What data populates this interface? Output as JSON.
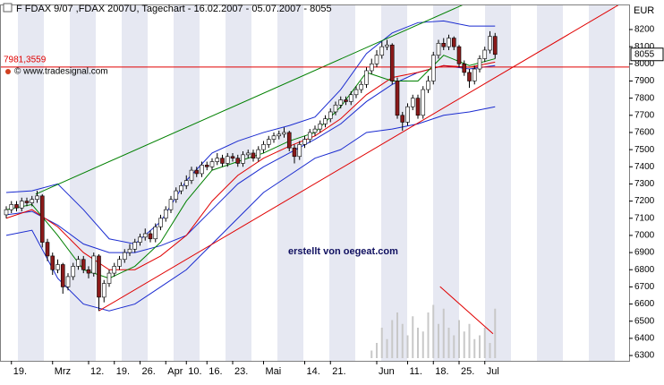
{
  "chart_data": {
    "type": "candlestick",
    "title": "F FDAX 9/07 ,FDAX 2007U, Tagechart - 16.02.2007 - 05.07.2007 - 8055",
    "source": "© www.tradesignal.com",
    "annotation": "erstellt von oegeat.com",
    "y_axis_label": "EUR",
    "last_price": 8055,
    "ylim": [
      6269,
      8346
    ],
    "yticks": [
      8200,
      8100,
      8000,
      7900,
      7800,
      7700,
      7600,
      7500,
      7400,
      7300,
      7200,
      7100,
      7000,
      6900,
      6800,
      6700,
      6600,
      6500,
      6400,
      6300
    ],
    "categories": [
      null,
      "19.",
      null,
      null,
      null,
      null,
      null,
      null,
      null,
      "Mrz",
      null,
      null,
      null,
      null,
      null,
      null,
      "12.",
      null,
      null,
      null,
      null,
      "19.",
      null,
      null,
      null,
      null,
      "26.",
      null,
      null,
      null,
      null,
      "Apr",
      null,
      null,
      null,
      "10.",
      null,
      null,
      null,
      "16.",
      null,
      null,
      null,
      null,
      "23.",
      null,
      null,
      null,
      null,
      null,
      "Mai",
      null,
      null,
      null,
      null,
      null,
      null,
      null,
      "14.",
      null,
      null,
      null,
      null,
      "21.",
      null,
      null,
      null,
      null,
      null,
      null,
      null,
      null,
      "Jun",
      null,
      null,
      null,
      null,
      null,
      "11.",
      null,
      null,
      null,
      null,
      "18.",
      null,
      null,
      null,
      null,
      "25.",
      null,
      null,
      null,
      null,
      "Jul",
      null,
      null
    ],
    "up_color": "#ffffff",
    "down_color": "#8b1a1a",
    "candles": [
      [
        7120,
        7170,
        7100,
        7150
      ],
      [
        7150,
        7200,
        7130,
        7180
      ],
      [
        7180,
        7200,
        7140,
        7160
      ],
      [
        7160,
        7220,
        7140,
        7200
      ],
      [
        7200,
        7220,
        7170,
        7190
      ],
      [
        7190,
        7230,
        7170,
        7210
      ],
      [
        7210,
        7260,
        7190,
        7230
      ],
      [
        7230,
        7240,
        6930,
        6960
      ],
      [
        6960,
        6980,
        6850,
        6880
      ],
      [
        6880,
        6900,
        6770,
        6800
      ],
      [
        6800,
        6860,
        6780,
        6830
      ],
      [
        6830,
        6840,
        6660,
        6700
      ],
      [
        6700,
        6780,
        6680,
        6760
      ],
      [
        6760,
        6840,
        6740,
        6820
      ],
      [
        6820,
        6880,
        6800,
        6860
      ],
      [
        6860,
        6880,
        6780,
        6800
      ],
      [
        6800,
        6820,
        6750,
        6780
      ],
      [
        6780,
        6900,
        6760,
        6880
      ],
      [
        6880,
        6890,
        6560,
        6640
      ],
      [
        6640,
        6740,
        6610,
        6720
      ],
      [
        6720,
        6800,
        6700,
        6780
      ],
      [
        6780,
        6840,
        6760,
        6820
      ],
      [
        6820,
        6880,
        6800,
        6860
      ],
      [
        6860,
        6920,
        6840,
        6900
      ],
      [
        6900,
        6950,
        6880,
        6920
      ],
      [
        6920,
        6980,
        6900,
        6960
      ],
      [
        6960,
        7010,
        6940,
        6990
      ],
      [
        6990,
        7040,
        6970,
        7010
      ],
      [
        7010,
        7030,
        6960,
        6980
      ],
      [
        6980,
        7070,
        6960,
        7050
      ],
      [
        7050,
        7120,
        7030,
        7100
      ],
      [
        7100,
        7170,
        7080,
        7150
      ],
      [
        7150,
        7230,
        7130,
        7210
      ],
      [
        7210,
        7280,
        7190,
        7260
      ],
      [
        7260,
        7310,
        7240,
        7290
      ],
      [
        7290,
        7350,
        7270,
        7320
      ],
      [
        7320,
        7400,
        7300,
        7380
      ],
      [
        7380,
        7400,
        7340,
        7360
      ],
      [
        7360,
        7430,
        7340,
        7410
      ],
      [
        7410,
        7430,
        7380,
        7400
      ],
      [
        7400,
        7450,
        7380,
        7430
      ],
      [
        7430,
        7480,
        7410,
        7450
      ],
      [
        7450,
        7470,
        7400,
        7420
      ],
      [
        7420,
        7480,
        7400,
        7460
      ],
      [
        7460,
        7480,
        7430,
        7450
      ],
      [
        7450,
        7470,
        7400,
        7420
      ],
      [
        7420,
        7490,
        7400,
        7470
      ],
      [
        7470,
        7500,
        7450,
        7480
      ],
      [
        7480,
        7500,
        7430,
        7450
      ],
      [
        7450,
        7520,
        7430,
        7500
      ],
      [
        7500,
        7550,
        7480,
        7530
      ],
      [
        7530,
        7580,
        7510,
        7560
      ],
      [
        7560,
        7600,
        7540,
        7580
      ],
      [
        7580,
        7610,
        7560,
        7590
      ],
      [
        7590,
        7630,
        7570,
        7600
      ],
      [
        7600,
        7610,
        7490,
        7510
      ],
      [
        7510,
        7530,
        7420,
        7460
      ],
      [
        7460,
        7550,
        7440,
        7530
      ],
      [
        7530,
        7580,
        7510,
        7560
      ],
      [
        7560,
        7620,
        7540,
        7600
      ],
      [
        7600,
        7640,
        7580,
        7620
      ],
      [
        7620,
        7670,
        7600,
        7650
      ],
      [
        7650,
        7700,
        7630,
        7680
      ],
      [
        7680,
        7740,
        7660,
        7720
      ],
      [
        7720,
        7780,
        7700,
        7760
      ],
      [
        7760,
        7810,
        7740,
        7790
      ],
      [
        7790,
        7810,
        7760,
        7780
      ],
      [
        7780,
        7840,
        7760,
        7820
      ],
      [
        7820,
        7870,
        7800,
        7850
      ],
      [
        7850,
        7900,
        7830,
        7880
      ],
      [
        7880,
        7980,
        7860,
        7960
      ],
      [
        7960,
        8030,
        7940,
        8000
      ],
      [
        8000,
        8080,
        7980,
        8050
      ],
      [
        8050,
        8130,
        8030,
        8100
      ],
      [
        8100,
        8140,
        8080,
        8110
      ],
      [
        8110,
        8120,
        7880,
        7900
      ],
      [
        7900,
        7920,
        7680,
        7700
      ],
      [
        7700,
        7720,
        7610,
        7660
      ],
      [
        7660,
        7770,
        7640,
        7750
      ],
      [
        7750,
        7820,
        7730,
        7800
      ],
      [
        7800,
        7820,
        7680,
        7700
      ],
      [
        7700,
        7870,
        7680,
        7850
      ],
      [
        7850,
        7930,
        7830,
        7900
      ],
      [
        7900,
        8070,
        7880,
        8050
      ],
      [
        8050,
        8140,
        8030,
        8120
      ],
      [
        8120,
        8150,
        8080,
        8100
      ],
      [
        8100,
        8170,
        8080,
        8150
      ],
      [
        8150,
        8160,
        8080,
        8100
      ],
      [
        8100,
        8110,
        7980,
        8000
      ],
      [
        8000,
        8020,
        7930,
        7950
      ],
      [
        7950,
        7970,
        7860,
        7900
      ],
      [
        7900,
        7990,
        7880,
        7970
      ],
      [
        7970,
        8050,
        7950,
        8030
      ],
      [
        8030,
        8100,
        8010,
        8080
      ],
      [
        8080,
        8190,
        8060,
        8160
      ],
      [
        8160,
        8180,
        8030,
        8055
      ]
    ],
    "overlays": [
      {
        "color": "#1a2bd0",
        "x": [
          0,
          5,
          10,
          15,
          20,
          25,
          30,
          35,
          40,
          45,
          50,
          55,
          60,
          65,
          70,
          75,
          80,
          85,
          90,
          95
        ],
        "values": [
          7250,
          7260,
          7300,
          7150,
          6980,
          6950,
          7080,
          7320,
          7480,
          7550,
          7600,
          7640,
          7690,
          7850,
          8060,
          8180,
          8240,
          8250,
          8220,
          8220
        ]
      },
      {
        "color": "#1a2bd0",
        "x": [
          0,
          5,
          10,
          15,
          20,
          25,
          30,
          35,
          40,
          45,
          50,
          55,
          60,
          65,
          70,
          75,
          80,
          85,
          90,
          95
        ],
        "values": [
          7000,
          7030,
          6750,
          6600,
          6560,
          6600,
          6700,
          6800,
          6950,
          7100,
          7250,
          7350,
          7450,
          7500,
          7600,
          7620,
          7650,
          7700,
          7720,
          7750
        ]
      },
      {
        "color": "#1a2bd0",
        "x": [
          0,
          5,
          10,
          15,
          20,
          25,
          30,
          35,
          40,
          45,
          50,
          55,
          60,
          65,
          70,
          75,
          80,
          85,
          90,
          95
        ],
        "values": [
          7120,
          7140,
          7060,
          6950,
          6900,
          6900,
          6940,
          7000,
          7150,
          7300,
          7400,
          7480,
          7560,
          7650,
          7780,
          7880,
          7950,
          7990,
          7970,
          7990
        ]
      },
      {
        "color": "#e00000",
        "x": [
          0,
          5,
          10,
          15,
          20,
          25,
          30,
          35,
          40,
          45,
          50,
          55,
          60,
          65,
          70,
          75,
          80,
          85,
          90,
          95
        ],
        "values": [
          7100,
          7150,
          7050,
          6900,
          6800,
          6800,
          6880,
          7000,
          7200,
          7350,
          7450,
          7520,
          7580,
          7680,
          7820,
          7920,
          7950,
          7990,
          7980,
          8010
        ]
      },
      {
        "color": "#008000",
        "x": [
          0,
          5,
          10,
          15,
          20,
          25,
          30,
          35,
          40,
          45,
          50,
          55,
          60,
          65,
          70,
          75,
          80,
          85,
          90,
          95
        ],
        "values": [
          7150,
          7180,
          7000,
          6800,
          6750,
          6820,
          6960,
          7200,
          7380,
          7430,
          7480,
          7550,
          7600,
          7750,
          7950,
          7900,
          7900,
          8050,
          7990,
          8030
        ]
      },
      {
        "color": "#008000",
        "x": [
          5.7,
          90.7
        ],
        "values": [
          7240,
          8370
        ]
      },
      {
        "color": "#e00000",
        "x": [
          18,
          120.5
        ],
        "values": [
          6560,
          8370
        ]
      }
    ],
    "hline": {
      "value": 7981.3559,
      "label": "7981,3559",
      "color": "#e00000"
    },
    "volume": {
      "ylim": [
        0,
        100
      ],
      "color": "#c8c8c8",
      "x": [
        71,
        72,
        73,
        74,
        75,
        76,
        77,
        78,
        79,
        80,
        81,
        82,
        83,
        84,
        85,
        86,
        87,
        88,
        89,
        90,
        91,
        92,
        93,
        94,
        95
      ],
      "values": [
        10,
        20,
        40,
        25,
        50,
        60,
        45,
        30,
        55,
        40,
        35,
        60,
        70,
        45,
        65,
        40,
        30,
        50,
        35,
        45,
        25,
        30,
        40,
        20,
        65
      ],
      "trend": {
        "color": "#e00000",
        "x": [
          84.3,
          94.6
        ],
        "values": [
          94,
          32
        ]
      }
    }
  }
}
